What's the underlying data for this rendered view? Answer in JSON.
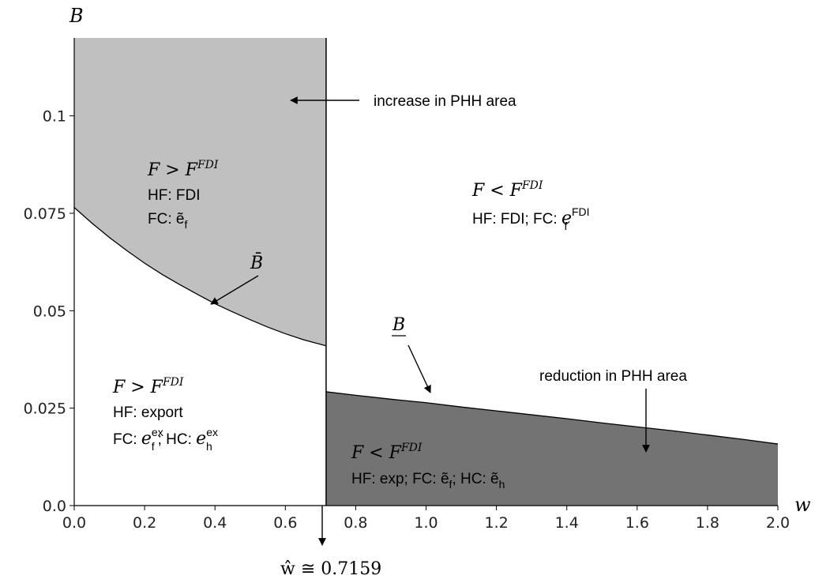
{
  "chart_data": {
    "type": "area",
    "xlabel": "w",
    "ylabel": "B",
    "xlim": [
      0,
      2.0
    ],
    "ylim": [
      0,
      0.12
    ],
    "x_ticks": [
      "0.0",
      "0.2",
      "0.4",
      "0.6",
      "0.8",
      "1.0",
      "1.2",
      "1.4",
      "1.6",
      "1.8",
      "2.0"
    ],
    "y_ticks": [
      "0.0",
      "0.025",
      "0.05",
      "0.075",
      "0.1"
    ],
    "threshold_w": 0.7159,
    "threshold_label": "ŵ ≅ 0.7159",
    "colors": {
      "light_region": "#c0c0c0",
      "dark_region": "#737373",
      "line": "#000000"
    },
    "series": [
      {
        "name": "B̄",
        "x": [
          0.0,
          0.05,
          0.1,
          0.15,
          0.2,
          0.25,
          0.3,
          0.35,
          0.4,
          0.45,
          0.5,
          0.55,
          0.6,
          0.65,
          0.7159
        ],
        "y": [
          0.0765,
          0.0725,
          0.0688,
          0.0654,
          0.0622,
          0.0593,
          0.0567,
          0.0542,
          0.0518,
          0.0497,
          0.0477,
          0.0458,
          0.0441,
          0.0426,
          0.041
        ]
      },
      {
        "name": "B",
        "x": [
          0.7159,
          0.8,
          0.9,
          1.0,
          1.1,
          1.2,
          1.3,
          1.4,
          1.5,
          1.6,
          1.7,
          1.8,
          1.9,
          2.0
        ],
        "y": [
          0.0292,
          0.0283,
          0.0273,
          0.0264,
          0.0253,
          0.0243,
          0.0233,
          0.0223,
          0.0212,
          0.0202,
          0.0192,
          0.0181,
          0.017,
          0.0158
        ]
      }
    ],
    "annotations": {
      "increase": "increase in PHH area",
      "reduction": "reduction in PHH area",
      "region_tl": {
        "cond": "F > F",
        "cond_sup": "FDI",
        "hf": "HF: FDI",
        "fc": "FC: ẽ",
        "fc_sub": "f"
      },
      "region_tr": {
        "cond": "F < F",
        "cond_sup": "FDI",
        "line2": "HF: FDI; FC: ",
        "e": "e",
        "e_sup": "FDI",
        "e_sub": "f"
      },
      "region_bl": {
        "cond": "F > F",
        "cond_sup": "FDI",
        "hf": "HF: export",
        "fc": "FC: ",
        "e1": "e",
        "e1_sup": "ex",
        "e1_sub": "f",
        "hc": "; HC: ",
        "e2": "e",
        "e2_sup": "ex",
        "e2_sub": "h"
      },
      "region_br": {
        "cond": "F < F",
        "cond_sup": "FDI",
        "t1": "HF: exp; FC: ",
        "e1": "ẽ",
        "e1_sub": "f",
        "t2": "; HC: ",
        "e2": "ẽ",
        "e2_sub": "h"
      },
      "bbar_label": "B̄",
      "bunder_label": "B"
    }
  }
}
